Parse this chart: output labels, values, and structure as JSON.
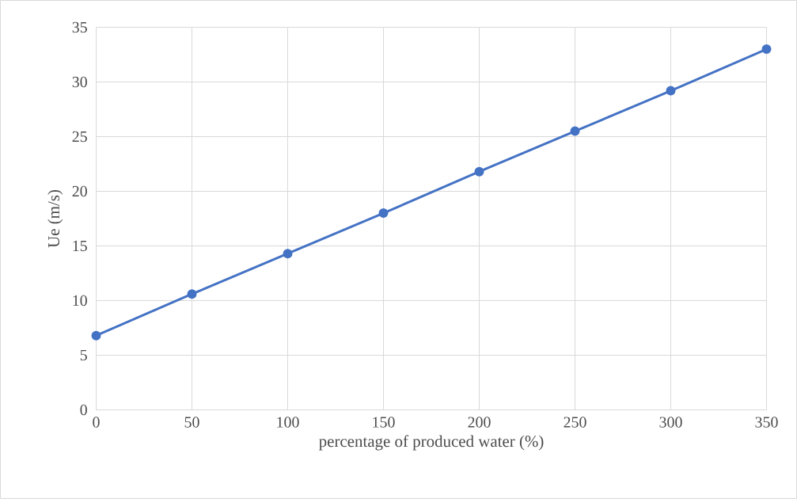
{
  "chart_data": {
    "type": "line",
    "xlabel": "percentage of produced water (%)",
    "ylabel": "Ue (m/s)",
    "x": [
      0,
      50,
      100,
      150,
      200,
      250,
      300,
      350
    ],
    "series": [
      {
        "color": "#4472c4",
        "values": [
          6.8,
          10.6,
          14.3,
          18.0,
          21.8,
          25.5,
          29.2,
          33.0
        ]
      }
    ],
    "xlim": [
      0,
      350
    ],
    "ylim": [
      0,
      35
    ],
    "xticks": [
      0,
      50,
      100,
      150,
      200,
      250,
      300,
      350
    ],
    "yticks": [
      0,
      5,
      10,
      15,
      20,
      25,
      30,
      35
    ],
    "grid": true,
    "marker": "circle",
    "line_style": "solid"
  }
}
